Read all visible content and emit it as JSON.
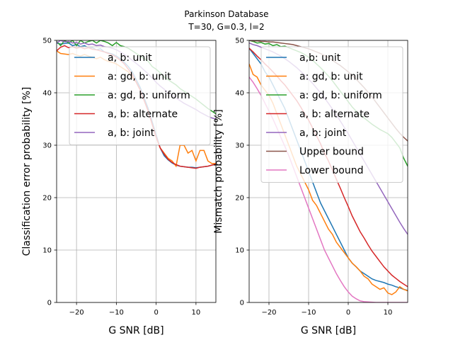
{
  "figure": {
    "title_line1": "Parkinson Database",
    "title_line2": "T=30, G=0.3, l=2"
  },
  "chart_data": [
    {
      "type": "line",
      "xlabel": "G SNR [dB]",
      "ylabel": "Classification error probability [%]",
      "xlim": [
        -25,
        15
      ],
      "ylim": [
        0,
        50
      ],
      "xticks": [
        -20,
        -10,
        0,
        10
      ],
      "yticks": [
        0,
        10,
        20,
        30,
        40,
        50
      ],
      "xtick_labels": [
        "−20",
        "−10",
        "0",
        "10"
      ],
      "ytick_labels": [
        "0",
        "10",
        "20",
        "30",
        "40",
        "50"
      ],
      "grid": true,
      "legend_position": "upper right",
      "x": [
        -25,
        -24,
        -23,
        -22,
        -21,
        -20,
        -19,
        -18,
        -17,
        -16,
        -15,
        -14,
        -13,
        -12,
        -11,
        -10,
        -9,
        -8,
        -7,
        -6,
        -5,
        -4,
        -3,
        -2,
        -1,
        0,
        1,
        2,
        3,
        4,
        5,
        6,
        7,
        8,
        9,
        10,
        11,
        12,
        13,
        14,
        15
      ],
      "series": [
        {
          "name": "a, b: unit",
          "color": "#1f77b4",
          "values": [
            49.5,
            49.3,
            49.4,
            49.5,
            49.0,
            49.2,
            48.8,
            49.0,
            48.6,
            48.6,
            48.2,
            48.4,
            47.8,
            47.6,
            47.4,
            47.0,
            46.5,
            45.8,
            45.0,
            44.0,
            42.5,
            41.0,
            39.0,
            37.0,
            34.5,
            32.0,
            29.5,
            28.0,
            27.2,
            26.6,
            26.2,
            26.0,
            25.9,
            25.8,
            25.8,
            25.7,
            25.8,
            25.9,
            26.0,
            26.2,
            26.4
          ]
        },
        {
          "name": "a: gd, b: unit",
          "color": "#ff7f0e",
          "values": [
            48.0,
            47.5,
            47.4,
            47.3,
            47.5,
            47.2,
            47.0,
            47.3,
            47.0,
            46.8,
            46.5,
            46.8,
            46.3,
            46.0,
            45.8,
            45.5,
            45.0,
            44.5,
            44.0,
            43.0,
            42.0,
            40.5,
            38.5,
            36.5,
            34.0,
            31.5,
            29.5,
            28.5,
            27.5,
            27.0,
            26.0,
            30.0,
            30.0,
            28.5,
            29.0,
            27.0,
            29.0,
            29.0,
            27.0,
            26.5,
            26.5
          ]
        },
        {
          "name": "a: gd, b: uniform",
          "color": "#2ca02c",
          "values": [
            49.8,
            49.0,
            50.0,
            49.5,
            50.0,
            49.0,
            50.0,
            49.5,
            49.8,
            50.0,
            49.5,
            50.0,
            49.8,
            49.5,
            49.0,
            49.6,
            49.0,
            48.8,
            48.5,
            48.0,
            47.5,
            47.0,
            46.5,
            46.0,
            45.0,
            44.5,
            43.8,
            43.0,
            42.5,
            42.0,
            41.5,
            40.8,
            40.3,
            39.8,
            39.3,
            38.8,
            38.2,
            37.6,
            37.0,
            36.5,
            36.0
          ]
        },
        {
          "name": "a, b: alternate",
          "color": "#d62728",
          "values": [
            48.0,
            48.7,
            49.0,
            48.6,
            48.8,
            48.5,
            48.7,
            48.4,
            48.6,
            48.3,
            48.2,
            48.0,
            47.8,
            47.5,
            47.2,
            46.8,
            46.2,
            45.5,
            44.5,
            43.5,
            42.0,
            40.5,
            38.5,
            36.5,
            34.0,
            31.5,
            29.5,
            28.3,
            27.3,
            26.7,
            26.3,
            26.0,
            25.9,
            25.8,
            25.7,
            25.6,
            25.8,
            25.9,
            26.0,
            26.2,
            26.4
          ]
        },
        {
          "name": "a, b: joint",
          "color": "#9467bd",
          "values": [
            49.5,
            50.0,
            49.7,
            49.8,
            49.5,
            49.6,
            49.3,
            49.5,
            49.2,
            49.3,
            49.0,
            49.1,
            48.8,
            48.7,
            48.5,
            48.2,
            47.8,
            47.3,
            46.8,
            46.2,
            45.6,
            45.0,
            44.3,
            43.6,
            42.8,
            42.0,
            41.3,
            40.7,
            40.0,
            39.5,
            39.0,
            38.5,
            38.0,
            37.6,
            37.2,
            36.8,
            36.3,
            35.9,
            35.5,
            35.2,
            35.0
          ]
        }
      ]
    },
    {
      "type": "line",
      "xlabel": "G SNR [dB]",
      "ylabel": "Mismatch probability [%]",
      "xlim": [
        -25,
        15
      ],
      "ylim": [
        0,
        50
      ],
      "xticks": [
        -20,
        -10,
        0,
        10
      ],
      "yticks": [
        0,
        10,
        20,
        30,
        40,
        50
      ],
      "xtick_labels": [
        "−20",
        "−10",
        "0",
        "10"
      ],
      "ytick_labels": [
        "0",
        "10",
        "20",
        "30",
        "40",
        "50"
      ],
      "grid": true,
      "legend_position": "upper right",
      "x": [
        -25,
        -24,
        -23,
        -22,
        -21,
        -20,
        -19,
        -18,
        -17,
        -16,
        -15,
        -14,
        -13,
        -12,
        -11,
        -10,
        -9,
        -8,
        -7,
        -6,
        -5,
        -4,
        -3,
        -2,
        -1,
        0,
        1,
        2,
        3,
        4,
        5,
        6,
        7,
        8,
        9,
        10,
        11,
        12,
        13,
        14,
        15
      ],
      "series": [
        {
          "name": "a,b: unit",
          "color": "#1f77b4",
          "values": [
            48.5,
            47.5,
            46.5,
            45.5,
            44.0,
            43.0,
            41.5,
            40.0,
            38.5,
            37.0,
            35.0,
            33.0,
            31.0,
            29.0,
            27.0,
            25.0,
            23.0,
            21.0,
            19.0,
            17.5,
            16.0,
            14.5,
            13.0,
            11.5,
            10.0,
            8.5,
            7.5,
            6.8,
            6.0,
            5.5,
            5.0,
            4.5,
            4.2,
            4.0,
            3.8,
            3.5,
            3.3,
            3.0,
            2.8,
            2.5,
            2.3
          ]
        },
        {
          "name": "a: gd, b: unit",
          "color": "#ff7f0e",
          "values": [
            45.5,
            43.5,
            43.0,
            41.5,
            40.5,
            39.5,
            38.0,
            36.0,
            34.0,
            32.0,
            30.0,
            28.0,
            26.0,
            24.5,
            23.0,
            21.5,
            19.5,
            18.5,
            17.0,
            15.5,
            14.0,
            13.0,
            11.5,
            10.5,
            9.5,
            8.5,
            7.5,
            6.8,
            6.0,
            5.0,
            4.5,
            3.5,
            3.0,
            2.5,
            2.8,
            1.8,
            1.5,
            2.0,
            3.0,
            2.5,
            2.2
          ]
        },
        {
          "name": "a: gd, b: uniform",
          "color": "#2ca02c",
          "values": [
            50.0,
            49.8,
            49.5,
            49.6,
            49.3,
            49.4,
            49.0,
            49.2,
            48.8,
            48.9,
            48.6,
            48.3,
            48.0,
            47.7,
            47.3,
            46.8,
            46.2,
            45.5,
            44.8,
            44.0,
            43.2,
            42.3,
            41.3,
            40.3,
            39.3,
            38.3,
            37.3,
            36.5,
            35.8,
            35.2,
            34.6,
            34.0,
            33.5,
            33.0,
            32.6,
            32.2,
            31.5,
            30.5,
            29.5,
            27.5,
            26.0
          ]
        },
        {
          "name": "a, b: alternate",
          "color": "#d62728",
          "values": [
            48.5,
            47.8,
            47.0,
            46.3,
            45.5,
            44.8,
            44.0,
            43.2,
            42.3,
            41.5,
            40.5,
            39.5,
            38.5,
            37.3,
            36.0,
            34.8,
            33.3,
            31.8,
            30.3,
            28.5,
            27.0,
            25.3,
            23.5,
            21.8,
            20.0,
            18.3,
            16.5,
            15.0,
            13.5,
            12.3,
            11.0,
            9.8,
            8.8,
            7.8,
            6.8,
            6.0,
            5.2,
            4.6,
            4.0,
            3.5,
            3.0
          ]
        },
        {
          "name": "a, b: joint",
          "color": "#9467bd",
          "values": [
            49.5,
            49.2,
            49.0,
            48.7,
            48.4,
            48.1,
            47.8,
            47.4,
            47.0,
            46.5,
            46.0,
            45.4,
            44.8,
            44.1,
            43.4,
            42.6,
            41.8,
            40.9,
            40.0,
            39.0,
            38.0,
            36.9,
            35.8,
            34.6,
            33.4,
            32.2,
            30.9,
            29.6,
            28.3,
            27.0,
            25.7,
            24.4,
            23.1,
            21.8,
            20.5,
            19.2,
            17.9,
            16.6,
            15.3,
            14.1,
            13.0
          ]
        },
        {
          "name": "Upper bound",
          "color": "#8c564b",
          "values": [
            50.0,
            49.9,
            49.9,
            49.8,
            49.8,
            49.7,
            49.7,
            49.6,
            49.5,
            49.4,
            49.3,
            49.2,
            49.0,
            48.8,
            48.6,
            48.4,
            48.1,
            47.8,
            47.5,
            47.1,
            46.7,
            46.2,
            45.7,
            45.2,
            44.6,
            44.0,
            43.3,
            42.6,
            41.8,
            41.0,
            40.1,
            39.2,
            38.2,
            37.2,
            36.2,
            35.2,
            34.2,
            33.2,
            32.3,
            31.5,
            30.8
          ]
        },
        {
          "name": "Lower bound",
          "color": "#e377c2",
          "values": [
            43.0,
            42.0,
            40.8,
            39.5,
            38.0,
            36.5,
            35.0,
            33.3,
            31.5,
            29.8,
            28.0,
            26.0,
            24.0,
            22.0,
            20.0,
            18.0,
            16.0,
            14.0,
            12.0,
            10.0,
            8.5,
            7.0,
            5.5,
            4.2,
            3.0,
            2.0,
            1.2,
            0.7,
            0.3,
            0.15,
            0.1,
            0.05,
            0.0,
            0.0,
            0.0,
            0.0,
            0.0,
            0.0,
            0.0,
            0.0,
            0.0
          ]
        }
      ]
    }
  ]
}
